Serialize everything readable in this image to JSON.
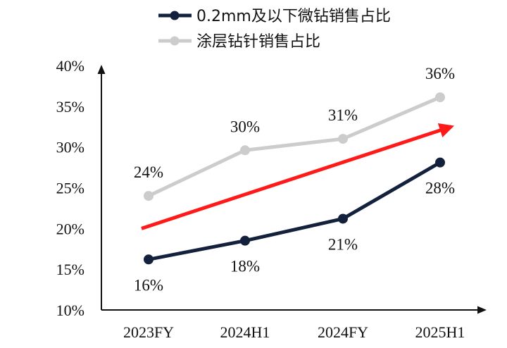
{
  "chart_data": {
    "type": "line",
    "title": "",
    "xlabel": "",
    "ylabel": "",
    "categories": [
      "2023FY",
      "2024H1",
      "2024FY",
      "2025H1"
    ],
    "ylim": [
      10,
      40
    ],
    "yticks": [
      10,
      15,
      20,
      25,
      30,
      35,
      40
    ],
    "ytick_labels": [
      "10%",
      "15%",
      "20%",
      "25%",
      "30%",
      "35%",
      "40%"
    ],
    "grid": false,
    "legend_position": "top",
    "series": [
      {
        "name": "0.2mm及以下微钻销售占比",
        "color": "#14213d",
        "values": [
          16.2,
          18.5,
          21.2,
          28.1
        ],
        "labels": [
          "16%",
          "18%",
          "21%",
          "28%"
        ],
        "label_position": "below"
      },
      {
        "name": "涂层钻针销售占比",
        "color": "#cccccc",
        "values": [
          24.0,
          29.6,
          31.0,
          36.1
        ],
        "labels": [
          "24%",
          "30%",
          "31%",
          "36%"
        ],
        "label_position": "above"
      }
    ],
    "annotations": [
      {
        "type": "trend-arrow",
        "color": "#ff1a1a",
        "from": [
          0,
          20.0
        ],
        "to": [
          3,
          32.5
        ]
      }
    ]
  }
}
